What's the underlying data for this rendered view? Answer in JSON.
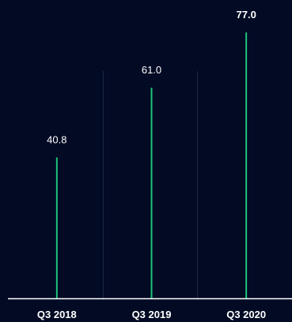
{
  "chart_data": {
    "type": "bar",
    "title": "",
    "xlabel": "",
    "ylabel": "",
    "categories": [
      "Q3 2018",
      "Q3 2019",
      "Q3 2020"
    ],
    "values": [
      40.8,
      61.0,
      77.0
    ],
    "value_labels": [
      "40.8",
      "61.0",
      "77.0"
    ],
    "emphasized_index": 2,
    "ylim": [
      0,
      80
    ],
    "grid": false,
    "legend": "none",
    "colors": {
      "background": "#020a24",
      "bar": "#1fc47a",
      "axis": "#ffffff",
      "separator": "#1c2840",
      "text": "#ffffff"
    }
  }
}
